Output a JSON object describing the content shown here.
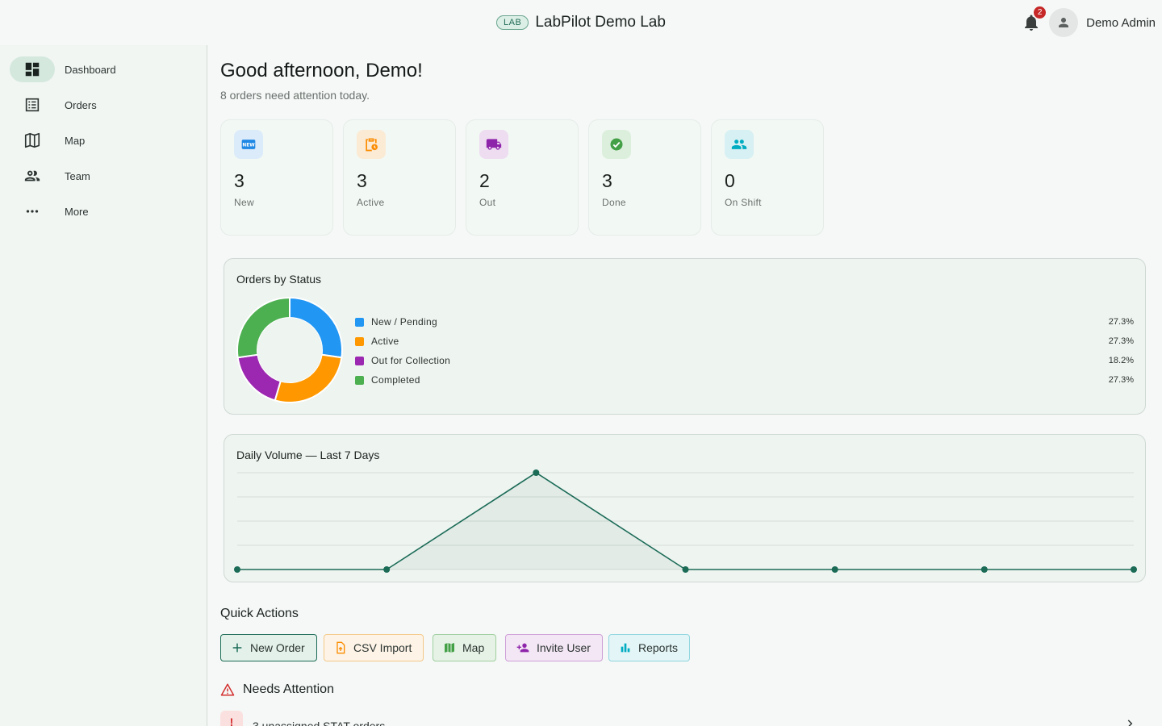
{
  "header": {
    "badge": "LAB",
    "title": "LabPilot Demo Lab",
    "notification_count": "2",
    "user_name": "Demo Admin"
  },
  "sidebar": {
    "items": [
      {
        "label": "Dashboard",
        "icon": "dashboard-icon",
        "active": true
      },
      {
        "label": "Orders",
        "icon": "list-icon"
      },
      {
        "label": "Map",
        "icon": "map-icon"
      },
      {
        "label": "Team",
        "icon": "people-icon"
      },
      {
        "label": "More",
        "icon": "more-icon"
      }
    ]
  },
  "main": {
    "greeting": "Good afternoon, Demo!",
    "subtext": "8 orders need attention today.",
    "stats": [
      {
        "value": "3",
        "label": "New",
        "icon": "new-badge-icon",
        "color": "#1e88e5"
      },
      {
        "value": "3",
        "label": "Active",
        "icon": "clipboard-clock-icon",
        "color": "#fb8c00"
      },
      {
        "value": "2",
        "label": "Out",
        "icon": "truck-icon",
        "color": "#8e24aa"
      },
      {
        "value": "3",
        "label": "Done",
        "icon": "check-circle-icon",
        "color": "#43a047"
      },
      {
        "value": "0",
        "label": "On Shift",
        "icon": "people-icon",
        "color": "#00acc1"
      }
    ]
  },
  "orders_by_status": {
    "title": "Orders by Status"
  },
  "daily_volume": {
    "title": "Daily Volume — Last 7 Days"
  },
  "chart_data": [
    {
      "type": "pie",
      "title": "Orders by Status",
      "categories": [
        "New / Pending",
        "Active",
        "Out for Collection",
        "Completed"
      ],
      "values": [
        27.3,
        27.3,
        18.2,
        27.3
      ],
      "labels": [
        "27.3%",
        "27.3%",
        "18.2%",
        "27.3%"
      ],
      "colors": [
        "#2196f3",
        "#ff9800",
        "#9c27b0",
        "#4caf50"
      ],
      "legend": "right"
    },
    {
      "type": "line",
      "title": "Daily Volume — Last 7 Days",
      "x": [
        1,
        2,
        3,
        4,
        5,
        6,
        7
      ],
      "series": [
        {
          "values": [
            0,
            0,
            4,
            0,
            0,
            0,
            0
          ]
        }
      ],
      "ylim": [
        0,
        4
      ],
      "grid": true,
      "color": "#1b6b57"
    }
  ],
  "quick_actions": {
    "title": "Quick Actions",
    "buttons": [
      {
        "label": "New Order",
        "icon": "plus-icon",
        "color": "#1b6b57",
        "bg": "#e3f1ea"
      },
      {
        "label": "CSV Import",
        "icon": "file-upload-icon",
        "color": "#fb8c00",
        "bg": "#fdf3e6"
      },
      {
        "label": "Map",
        "icon": "map-icon",
        "color": "#43a047",
        "bg": "#e6f2e6"
      },
      {
        "label": "Invite User",
        "icon": "person-add-icon",
        "color": "#8e24aa",
        "bg": "#f3e6f5"
      },
      {
        "label": "Reports",
        "icon": "bar-chart-icon",
        "color": "#00acc1",
        "bg": "#e3f5f7"
      }
    ]
  },
  "needs_attention": {
    "title": "Needs Attention",
    "items": [
      {
        "icon_text": "!",
        "text": "3 unassigned STAT orders"
      }
    ]
  }
}
